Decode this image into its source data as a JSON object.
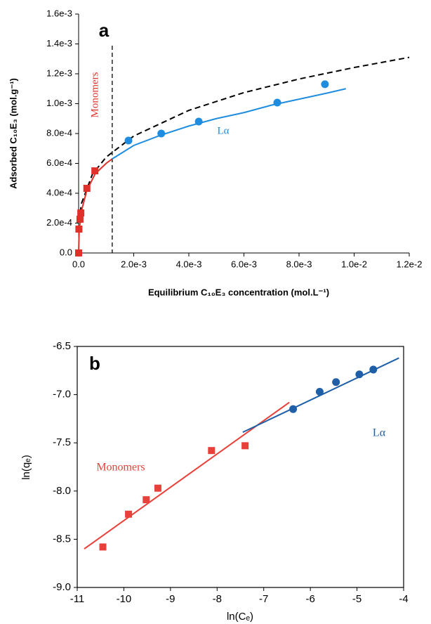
{
  "chart_data": [
    {
      "type": "scatter",
      "label": "a",
      "xlabel": "Equilibrium C₁₀E₃ concentration (mol.L⁻¹)",
      "ylabel": "Adsorbed C₁₀E₃ (mol.g⁻¹)",
      "xlim": [
        0,
        0.012
      ],
      "xticks": [
        {
          "value": 0,
          "label": "0.0"
        },
        {
          "value": 0.002,
          "label": "2.0e-3"
        },
        {
          "value": 0.004,
          "label": "4.0e-3"
        },
        {
          "value": 0.006,
          "label": "6.0e-3"
        },
        {
          "value": 0.008,
          "label": "8.0e-3"
        },
        {
          "value": 0.01,
          "label": "1.0e-2"
        },
        {
          "value": 0.012,
          "label": "1.2e-2"
        }
      ],
      "ylim": [
        0,
        0.0016
      ],
      "yticks": [
        {
          "value": 0,
          "label": "0.0"
        },
        {
          "value": 0.0002,
          "label": "2.0e-4"
        },
        {
          "value": 0.0004,
          "label": "4.0e-4"
        },
        {
          "value": 0.0006,
          "label": "6.0e-4"
        },
        {
          "value": 0.0008,
          "label": "8.0e-4"
        },
        {
          "value": 0.001,
          "label": "1.0e-3"
        },
        {
          "value": 0.0012,
          "label": "1.2e-3"
        },
        {
          "value": 0.0014,
          "label": "1.4e-3"
        },
        {
          "value": 0.0016,
          "label": "1.6e-3"
        }
      ],
      "vline": 0.00122,
      "series": [
        {
          "name": "Monomers",
          "color": "#e0302a",
          "marker": "square",
          "x": [
            0,
            1e-05,
            5e-05,
            8e-05,
            0.0003,
            0.00059
          ],
          "values": [
            0,
            0.00016,
            0.000226,
            0.000268,
            0.000433,
            0.00055
          ],
          "fit": {
            "x": [
              0,
              2e-05,
              0.0001,
              0.0003,
              0.0006,
              0.001,
              0.00122
            ],
            "values": [
              0,
              0.00015,
              0.00028,
              0.00042,
              0.00053,
              0.0006,
              0.00063
            ]
          }
        },
        {
          "name": "Lα",
          "color": "#1e8de0",
          "marker": "circle",
          "x": [
            0.00181,
            0.003,
            0.00436,
            0.00721,
            0.00894
          ],
          "values": [
            0.000753,
            0.0008,
            0.00088,
            0.001007,
            0.00113
          ],
          "fit": {
            "x": [
              0.00122,
              0.002,
              0.003,
              0.004,
              0.005,
              0.006,
              0.007,
              0.008,
              0.009,
              0.0097
            ],
            "values": [
              0.00063,
              0.00072,
              0.00079,
              0.00085,
              0.0009,
              0.00094,
              0.00099,
              0.00103,
              0.00107,
              0.0011
            ]
          }
        }
      ],
      "curves": [
        {
          "style": "dashed",
          "color": "#000000",
          "x": [
            2e-05,
            0.0001,
            0.0005,
            0.001,
            0.002,
            0.004,
            0.006,
            0.008,
            0.01,
            0.012
          ],
          "values": [
            0.000209,
            0.00033,
            0.000527,
            0.000642,
            0.000783,
            0.000955,
            0.001074,
            0.001165,
            0.001242,
            0.00131
          ]
        }
      ]
    },
    {
      "type": "scatter",
      "label": "b",
      "xlabel": "ln(Cₑ)",
      "ylabel": "ln(qₑ)",
      "xlim": [
        -11,
        -4
      ],
      "xticks": [
        -11,
        -10,
        -9,
        -8,
        -7,
        -6,
        -5,
        -4
      ],
      "ylim": [
        -9,
        -6.5
      ],
      "yticks": [
        {
          "value": -9,
          "label": "-9.0"
        },
        -8.5,
        {
          "value": -8,
          "label": "-8.0"
        },
        -7.5,
        {
          "value": -7,
          "label": "-7.0"
        },
        -6.5
      ],
      "series": [
        {
          "name": "Monomers",
          "color": "#e8403a",
          "marker": "square",
          "x": [
            -10.45,
            -9.9,
            -9.52,
            -9.27,
            -8.12,
            -7.4
          ],
          "values": [
            -8.58,
            -8.24,
            -8.09,
            -7.97,
            -7.58,
            -7.53
          ],
          "fit": {
            "x": [
              -10.85,
              -6.45
            ],
            "values": [
              -8.6,
              -7.08
            ]
          }
        },
        {
          "name": "Lα",
          "color": "#1f5fa8",
          "marker": "circle",
          "x": [
            -6.37,
            -5.8,
            -5.45,
            -4.95,
            -4.65
          ],
          "values": [
            -7.15,
            -6.97,
            -6.87,
            -6.79,
            -6.74
          ],
          "fit": {
            "x": [
              -7.45,
              -4.1
            ],
            "values": [
              -7.39,
              -6.62
            ]
          }
        }
      ]
    }
  ]
}
